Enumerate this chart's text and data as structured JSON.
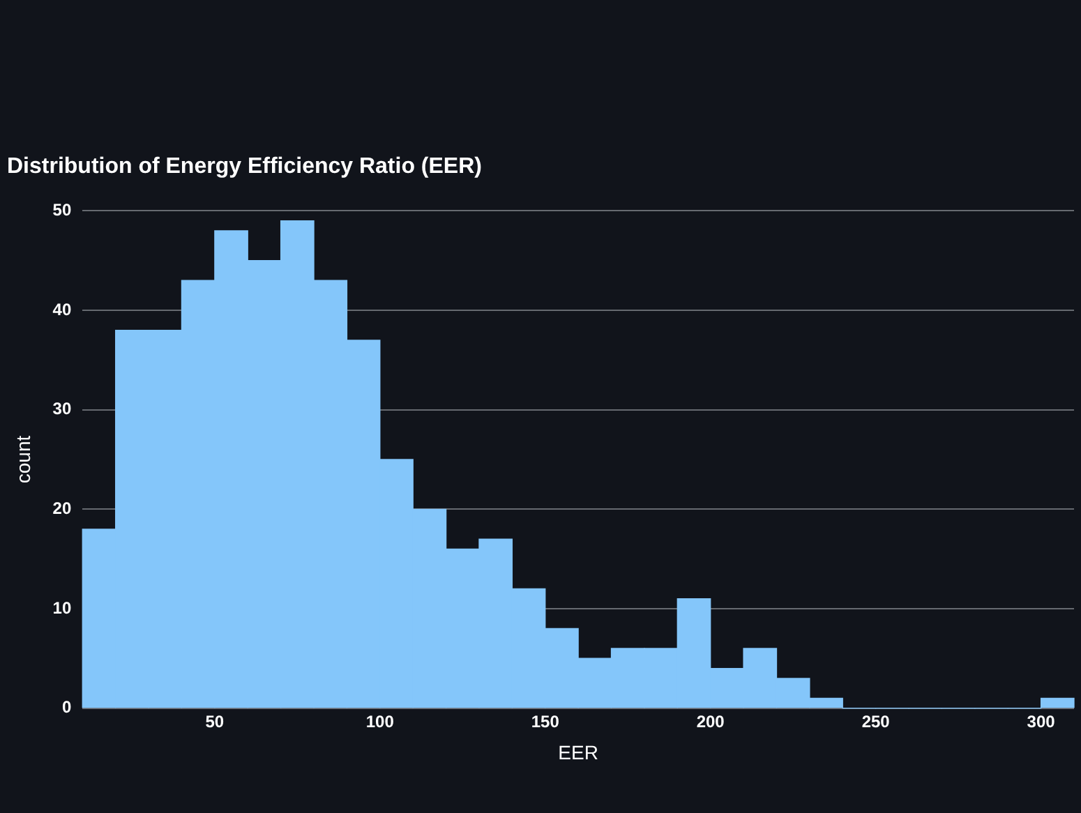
{
  "chart_data": {
    "type": "histogram",
    "title": "Distribution of Energy Efficiency Ratio (EER)",
    "xlabel": "EER",
    "ylabel": "count",
    "bins": [
      10,
      20,
      30,
      40,
      50,
      60,
      70,
      80,
      90,
      100,
      110,
      120,
      130,
      140,
      150,
      160,
      170,
      180,
      190,
      200,
      210,
      220,
      230,
      240,
      250,
      260,
      270,
      280,
      290,
      300,
      310
    ],
    "values": [
      18,
      38,
      38,
      43,
      48,
      45,
      49,
      43,
      37,
      25,
      20,
      16,
      17,
      12,
      8,
      5,
      6,
      6,
      11,
      4,
      6,
      3,
      1,
      0,
      0,
      0,
      0,
      0,
      0,
      1
    ],
    "color": "#84c6fa",
    "xlim": [
      10,
      310
    ],
    "xticks": [
      50,
      100,
      150,
      200,
      250,
      300
    ],
    "ylim": [
      0,
      50
    ],
    "yticks": [
      0,
      10,
      20,
      30,
      40,
      50
    ],
    "grid": "y",
    "legend": false
  }
}
